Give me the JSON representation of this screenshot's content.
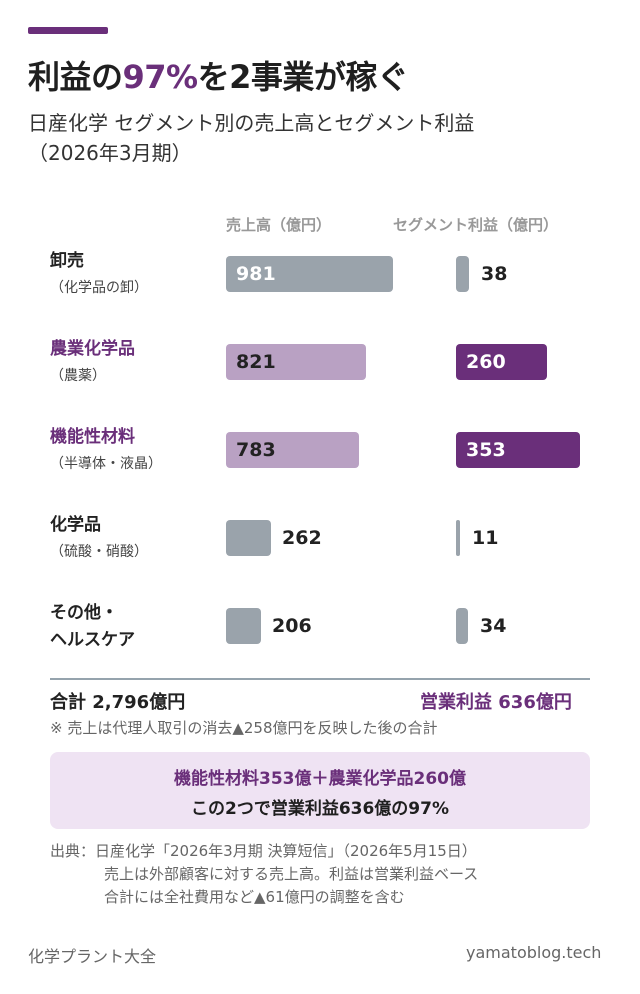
{
  "header": {
    "title_part1": "利益の",
    "title_highlight": "97%",
    "title_part2": "を2事業が稼ぐ",
    "subtitle_line1": "日産化学 セグメント別の売上高とセグメント利益",
    "subtitle_line2": "（2026年3月期）"
  },
  "colors": {
    "accent": "#6a2f7a",
    "gray_bar": "#9aa3ab",
    "purple_light_bar": "#b9a1c3",
    "purple_dark_bar": "#6a2f7a",
    "callout_bg": "#efe3f3"
  },
  "chart_data": {
    "type": "bar",
    "column_headers": [
      "売上高（億円）",
      "セグメント利益（億円）"
    ],
    "categories": [
      {
        "name": "卸売",
        "sub": "（化学品の卸）",
        "highlight": false
      },
      {
        "name": "農業化学品",
        "sub": "（農薬）",
        "highlight": true
      },
      {
        "name": "機能性材料",
        "sub": "（半導体・液晶）",
        "highlight": true
      },
      {
        "name": "化学品",
        "sub": "（硫酸・硝酸）",
        "highlight": false
      },
      {
        "name": "その他・",
        "sub": "ヘルスケア",
        "highlight": false
      }
    ],
    "series": [
      {
        "values": [
          981,
          821,
          783,
          262,
          206
        ]
      },
      {
        "values": [
          38,
          260,
          353,
          11,
          34
        ]
      }
    ],
    "legend": "none",
    "grid": false
  },
  "totals": {
    "sales_total": "合計 2,796億円",
    "profit_total": "営業利益 636億円",
    "note": "※ 売上は代理人取引の消去▲258億円を反映した後の合計"
  },
  "callout": {
    "line1": "機能性材料353億＋農業化学品260億",
    "line2": "この2つで営業利益636億の97%"
  },
  "source": {
    "line1": "出典：日産化学「2026年3月期 決算短信」（2026年5月15日）",
    "line2": "売上は外部顧客に対する売上高。利益は営業利益ベース",
    "line3": "合計には全社費用など▲61億円の調整を含む"
  },
  "footer": {
    "left": "化学プラント大全",
    "right": "yamatoblog.tech"
  }
}
